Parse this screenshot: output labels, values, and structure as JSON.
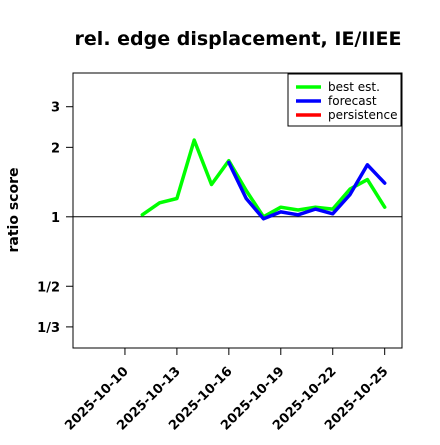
{
  "chart_data": {
    "type": "line",
    "title": "rel. edge displacement, IE/IIEE",
    "ylabel": "ratio score",
    "xlabel": "",
    "y_scale": "log",
    "ylim": [
      0.27,
      4.2
    ],
    "xlim": [
      "2025-10-07",
      "2025-10-26"
    ],
    "y_ticks": [
      {
        "value": 3,
        "label": "3"
      },
      {
        "value": 2,
        "label": "2"
      },
      {
        "value": 1,
        "label": "1"
      },
      {
        "value": 0.5,
        "label": "1/2"
      },
      {
        "value": 0.3333,
        "label": "1/3"
      }
    ],
    "x_ticks": [
      {
        "date": "2025-10-10",
        "label": "2025-10-10",
        "color": "#000000"
      },
      {
        "date": "2025-10-13",
        "label": "2025-10-13",
        "color": "#000000"
      },
      {
        "date": "2025-10-16",
        "label": "2025-10-16",
        "color": "#228b22"
      },
      {
        "date": "2025-10-19",
        "label": "2025-10-19",
        "color": "#000000"
      },
      {
        "date": "2025-10-22",
        "label": "2025-10-22",
        "color": "#000000"
      },
      {
        "date": "2025-10-25",
        "label": "2025-10-25",
        "color": "#000000"
      }
    ],
    "reference_line": 1,
    "legend_position": "top-right",
    "series": [
      {
        "name": "best est.",
        "color": "#00ff00",
        "points": [
          {
            "x": "2025-10-11",
            "y": 1.02
          },
          {
            "x": "2025-10-12",
            "y": 1.15
          },
          {
            "x": "2025-10-13",
            "y": 1.2
          },
          {
            "x": "2025-10-14",
            "y": 2.15
          },
          {
            "x": "2025-10-15",
            "y": 1.38
          },
          {
            "x": "2025-10-16",
            "y": 1.75
          },
          {
            "x": "2025-10-17",
            "y": 1.3
          },
          {
            "x": "2025-10-18",
            "y": 1.0
          },
          {
            "x": "2025-10-19",
            "y": 1.1
          },
          {
            "x": "2025-10-20",
            "y": 1.07
          },
          {
            "x": "2025-10-21",
            "y": 1.1
          },
          {
            "x": "2025-10-22",
            "y": 1.08
          },
          {
            "x": "2025-10-23",
            "y": 1.32
          },
          {
            "x": "2025-10-24",
            "y": 1.45
          },
          {
            "x": "2025-10-25",
            "y": 1.1
          }
        ]
      },
      {
        "name": "forecast",
        "color": "#0000ff",
        "points": [
          {
            "x": "2025-10-16",
            "y": 1.72
          },
          {
            "x": "2025-10-17",
            "y": 1.2
          },
          {
            "x": "2025-10-18",
            "y": 0.98
          },
          {
            "x": "2025-10-19",
            "y": 1.05
          },
          {
            "x": "2025-10-20",
            "y": 1.02
          },
          {
            "x": "2025-10-21",
            "y": 1.08
          },
          {
            "x": "2025-10-22",
            "y": 1.03
          },
          {
            "x": "2025-10-23",
            "y": 1.25
          },
          {
            "x": "2025-10-24",
            "y": 1.68
          },
          {
            "x": "2025-10-25",
            "y": 1.4
          }
        ]
      },
      {
        "name": "persistence",
        "color": "#ff0000",
        "points": []
      }
    ]
  }
}
